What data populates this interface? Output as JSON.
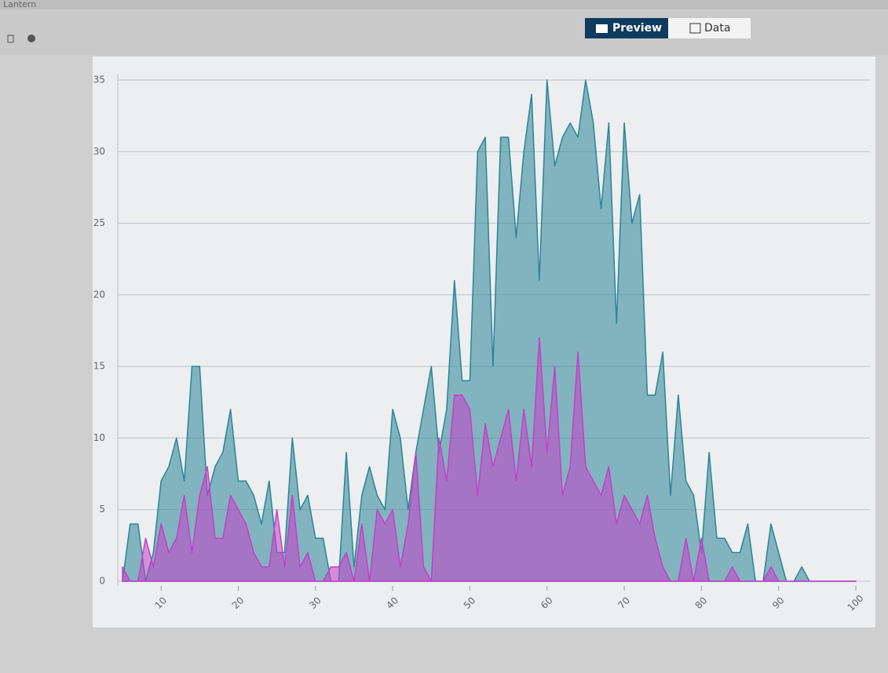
{
  "app": {
    "tab": "Lantern",
    "buttons": {
      "preview": "Preview",
      "data": "Data"
    }
  },
  "chart_data": {
    "type": "area",
    "x": [
      5,
      6,
      7,
      8,
      9,
      10,
      11,
      12,
      13,
      14,
      15,
      16,
      17,
      18,
      19,
      20,
      21,
      22,
      23,
      24,
      25,
      26,
      27,
      28,
      29,
      30,
      31,
      32,
      33,
      34,
      35,
      36,
      37,
      38,
      39,
      40,
      41,
      42,
      43,
      44,
      45,
      46,
      47,
      48,
      49,
      50,
      51,
      52,
      53,
      54,
      55,
      56,
      57,
      58,
      59,
      60,
      61,
      62,
      63,
      64,
      65,
      66,
      67,
      68,
      69,
      70,
      71,
      72,
      73,
      74,
      75,
      76,
      77,
      78,
      79,
      80,
      81,
      82,
      83,
      84,
      85,
      86,
      87,
      88,
      89,
      90,
      91,
      92,
      93,
      94,
      95,
      96,
      97,
      98,
      99,
      100
    ],
    "series": [
      {
        "color": "#2a8597",
        "values": [
          0,
          4,
          4,
          0,
          2,
          7,
          8,
          10,
          7,
          15,
          15,
          6,
          8,
          9,
          12,
          7,
          7,
          6,
          4,
          7,
          2,
          2,
          10,
          5,
          6,
          3,
          3,
          0,
          0,
          9,
          1,
          6,
          8,
          6,
          5,
          12,
          10,
          5,
          9,
          12,
          15,
          9,
          12,
          21,
          14,
          14,
          30,
          31,
          15,
          31,
          31,
          24,
          30,
          34,
          21,
          35,
          29,
          31,
          32,
          31,
          35,
          32,
          26,
          32,
          18,
          32,
          25,
          27,
          13,
          13,
          16,
          6,
          13,
          7,
          6,
          2,
          9,
          3,
          3,
          2,
          2,
          4,
          0,
          0,
          4,
          2,
          0,
          0,
          1,
          0,
          0,
          0,
          0,
          0,
          0,
          0
        ]
      },
      {
        "color": "#c43fc8",
        "values": [
          1,
          0,
          0,
          3,
          1,
          4,
          2,
          3,
          6,
          2,
          6,
          8,
          3,
          3,
          6,
          5,
          4,
          2,
          1,
          1,
          5,
          1,
          6,
          1,
          2,
          0,
          0,
          1,
          1,
          2,
          0,
          4,
          0,
          5,
          4,
          5,
          1,
          4,
          9,
          1,
          0,
          10,
          7,
          13,
          13,
          12,
          6,
          11,
          8,
          10,
          12,
          7,
          12,
          8,
          17,
          9,
          15,
          6,
          8,
          16,
          8,
          7,
          6,
          8,
          4,
          6,
          5,
          4,
          6,
          3,
          1,
          0,
          0,
          3,
          0,
          3,
          0,
          0,
          0,
          1,
          0,
          0,
          0,
          0,
          1,
          0,
          0,
          0,
          0,
          0,
          0,
          0,
          0,
          0,
          0,
          0
        ]
      }
    ],
    "xlim": [
      5,
      100
    ],
    "xticks": [
      10,
      20,
      30,
      40,
      50,
      60,
      70,
      80,
      90,
      100
    ],
    "ylim": [
      0,
      35
    ],
    "yticks": [
      0,
      5,
      10,
      15,
      20,
      25,
      30,
      35
    ],
    "grid": true
  }
}
